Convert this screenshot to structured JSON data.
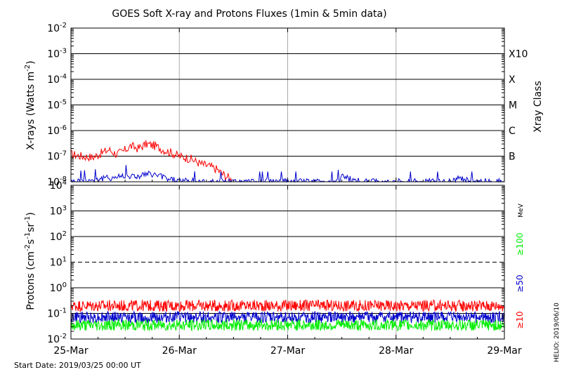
{
  "title": "GOES Soft X-ray and Protons Fluxes   (1min & 5min data)",
  "start_date": "Start Date: 2019/03/25 00:00 UT",
  "credit": "HELIO: 2019/06/10",
  "colors": {
    "red": "#ff0000",
    "blue": "#0000cc",
    "green": "#00ee00",
    "grid_v": "#aaaaaa"
  },
  "chart_data": [
    {
      "type": "line",
      "panel": "xray",
      "ylabel": "X-rays (Watts m",
      "ylabel_sup": "-2",
      "ylabel_close": ")",
      "yscale": "log",
      "ylim": [
        1e-08,
        0.01
      ],
      "yticks": [
        {
          "base": "10",
          "exp": "-2"
        },
        {
          "base": "10",
          "exp": "-3"
        },
        {
          "base": "10",
          "exp": "-4"
        },
        {
          "base": "10",
          "exp": "-5"
        },
        {
          "base": "10",
          "exp": "-6"
        },
        {
          "base": "10",
          "exp": "-7"
        },
        {
          "base": "10",
          "exp": "-8"
        }
      ],
      "right_axis_title": "Xray Class",
      "classes": [
        {
          "label": "X10",
          "level": 0.001
        },
        {
          "label": "X",
          "level": 0.0001
        },
        {
          "label": "M",
          "level": 1e-05
        },
        {
          "label": "C",
          "level": 1e-06
        },
        {
          "label": "B",
          "level": 1e-07
        }
      ],
      "series": [
        {
          "color": "red",
          "x": [
            0,
            0.1,
            0.2,
            0.28,
            0.35,
            0.42,
            0.48,
            0.55,
            0.62,
            0.7,
            0.78,
            0.85,
            0.92,
            1.0,
            1.1,
            1.2,
            1.28,
            1.35,
            1.4,
            1.45,
            1.5
          ],
          "y": [
            1.2e-07,
            1e-07,
            9e-08,
            1.3e-07,
            1.8e-07,
            1.2e-07,
            1.5e-07,
            2.5e-07,
            2e-07,
            3e-07,
            2.5e-07,
            1.8e-07,
            1.4e-07,
            1e-07,
            8e-08,
            5e-08,
            4e-08,
            3e-08,
            2e-08,
            1.5e-08,
            1e-08
          ]
        },
        {
          "color": "blue",
          "x": [
            0,
            0.2,
            0.4,
            0.5,
            0.6,
            0.7,
            0.8,
            0.9,
            1.0,
            1.2,
            1.5,
            2.0,
            2.45,
            2.5,
            2.55,
            2.62,
            2.7,
            3.0,
            3.5,
            3.58,
            3.62,
            3.7,
            4.0
          ],
          "y": [
            1e-08,
            1.2e-08,
            1.5e-08,
            1.8e-08,
            1.6e-08,
            2e-08,
            1.8e-08,
            1.3e-08,
            1.1e-08,
            1e-08,
            1e-08,
            1e-08,
            1e-08,
            1.6e-08,
            1.4e-08,
            1.1e-08,
            1e-08,
            1e-08,
            1e-08,
            1.5e-08,
            1.2e-08,
            1e-08,
            1e-08
          ]
        }
      ]
    },
    {
      "type": "line",
      "panel": "protons",
      "ylabel": "Protons (cm",
      "ylabel_sup1": "-2",
      "ylabel_mid": "s",
      "ylabel_sup2": "-1",
      "ylabel_mid2": "sr",
      "ylabel_sup3": "-1",
      "ylabel_close": ")",
      "yscale": "log",
      "ylim": [
        0.01,
        10000
      ],
      "yticks": [
        {
          "base": "10",
          "exp": "4"
        },
        {
          "base": "10",
          "exp": "3"
        },
        {
          "base": "10",
          "exp": "2"
        },
        {
          "base": "10",
          "exp": "1"
        },
        {
          "base": "10",
          "exp": "0"
        },
        {
          "base": "10",
          "exp": "-1"
        },
        {
          "base": "10",
          "exp": "-2"
        }
      ],
      "threshold": 10,
      "unit": "MeV",
      "energy_labels": [
        {
          "label": "≥100",
          "color": "green"
        },
        {
          "label": "≥50",
          "color": "blue"
        },
        {
          "label": "≥10",
          "color": "red"
        }
      ],
      "series": [
        {
          "color": "red",
          "x": [
            0,
            4
          ],
          "y": [
            0.2,
            0.2
          ]
        },
        {
          "color": "blue",
          "x": [
            0,
            4
          ],
          "y": [
            0.07,
            0.07
          ]
        },
        {
          "color": "green",
          "x": [
            0,
            4
          ],
          "y": [
            0.035,
            0.035
          ]
        }
      ]
    }
  ],
  "xaxis": {
    "range": [
      0,
      4
    ],
    "ticks": [
      "25-Mar",
      "26-Mar",
      "27-Mar",
      "28-Mar",
      "29-Mar"
    ]
  }
}
